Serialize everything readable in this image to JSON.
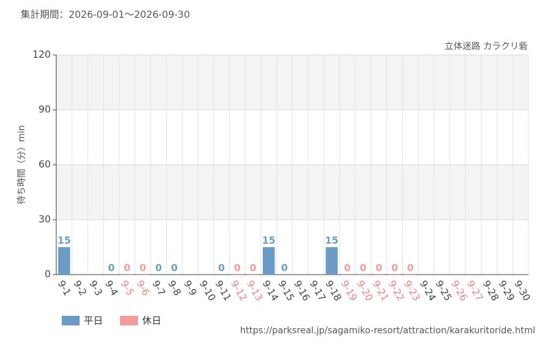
{
  "chart_data": {
    "type": "bar",
    "title": "集計期間：2026-09-01～2026-09-30",
    "subtitle": "立体迷路 カラクリ砦",
    "y_label": "待ち時間（分）min",
    "source": "https://parksreal.jp/sagamiko-resort/attraction/karakuritoride.html",
    "categories": [
      "9-1",
      "9-2",
      "9-3",
      "9-4",
      "9-5",
      "9-6",
      "9-7",
      "9-8",
      "9-9",
      "9-10",
      "9-11",
      "9-12",
      "9-13",
      "9-14",
      "9-15",
      "9-16",
      "9-17",
      "9-18",
      "9-19",
      "9-20",
      "9-21",
      "9-22",
      "9-23",
      "9-24",
      "9-25",
      "9-26",
      "9-27",
      "9-28",
      "9-29",
      "9-30"
    ],
    "label_colors": [
      "#444",
      "#444",
      "#444",
      "#444",
      "#f08080",
      "#f08080",
      "#444",
      "#444",
      "#444",
      "#444",
      "#444",
      "#f08080",
      "#f08080",
      "#444",
      "#444",
      "#444",
      "#444",
      "#444",
      "#f08080",
      "#f08080",
      "#f08080",
      "#f08080",
      "#f08080",
      "#444",
      "#444",
      "#f08080",
      "#f08080",
      "#444",
      "#444",
      "#444"
    ],
    "series": [
      {
        "name": "平日",
        "color": "#6a9cc6",
        "values": [
          15,
          null,
          null,
          0,
          null,
          null,
          0,
          0,
          null,
          null,
          0,
          null,
          null,
          15,
          0,
          null,
          null,
          15,
          null,
          null,
          null,
          null,
          null,
          null,
          null,
          null,
          null,
          null,
          null,
          null
        ]
      },
      {
        "name": "休日",
        "color": "#f59a9a",
        "values": [
          null,
          null,
          null,
          null,
          0,
          0,
          null,
          null,
          null,
          null,
          null,
          0,
          0,
          null,
          null,
          null,
          null,
          null,
          0,
          0,
          0,
          0,
          0,
          null,
          null,
          null,
          null,
          null,
          null,
          null
        ]
      }
    ],
    "ylim": [
      0,
      120
    ],
    "yticks": [
      0,
      30,
      60,
      90,
      120
    ],
    "grid": true,
    "legend": "bottom-left"
  }
}
